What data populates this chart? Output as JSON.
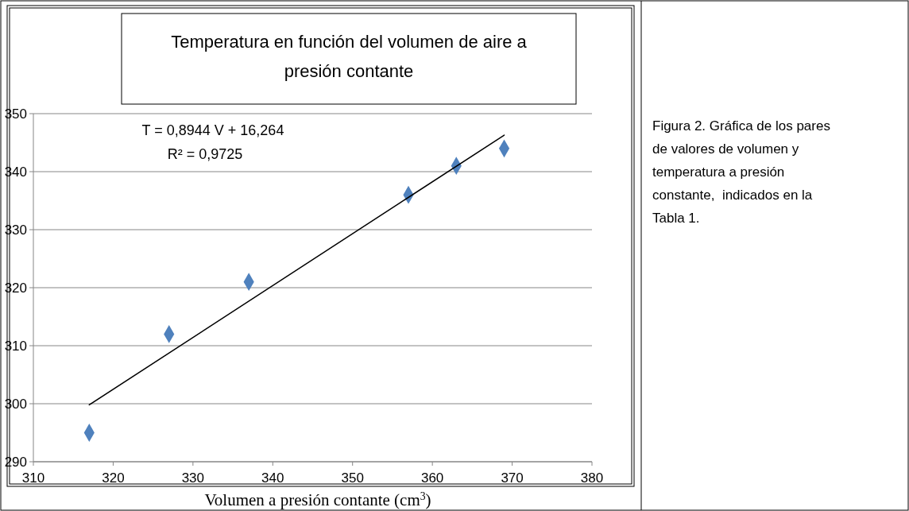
{
  "chart_data": {
    "type": "scatter",
    "title": "Temperatura en función del volumen de aire a presión contante",
    "xlabel": "Volumen a presión contante (cm$^{3}$)",
    "annotations": [
      "T = 0,8944 V + 16,264",
      "R² = 0,9725",
      "Figura 2. Gráfica de los pares de valores de volumen y temperatura a presión constante,  indicados en la Tabla 1."
    ],
    "series": [
      {
        "color": "#4f81bd",
        "x": [
          317,
          327,
          337,
          357,
          363,
          369
        ],
        "values": [
          295,
          312,
          321,
          336,
          341,
          344
        ],
        "marker": "diamond"
      },
      {
        "type": "line",
        "color": "#000000",
        "x": [
          317,
          369
        ],
        "values": [
          299.8,
          346.3
        ],
        "line_style": "solid"
      }
    ],
    "xlim": [
      310,
      380
    ],
    "xticks": [
      310,
      320,
      330,
      340,
      350,
      360,
      370,
      380
    ],
    "ylim": [
      290,
      350
    ],
    "yticks": [
      290,
      300,
      310,
      320,
      330,
      340,
      350
    ],
    "grid": "y"
  }
}
